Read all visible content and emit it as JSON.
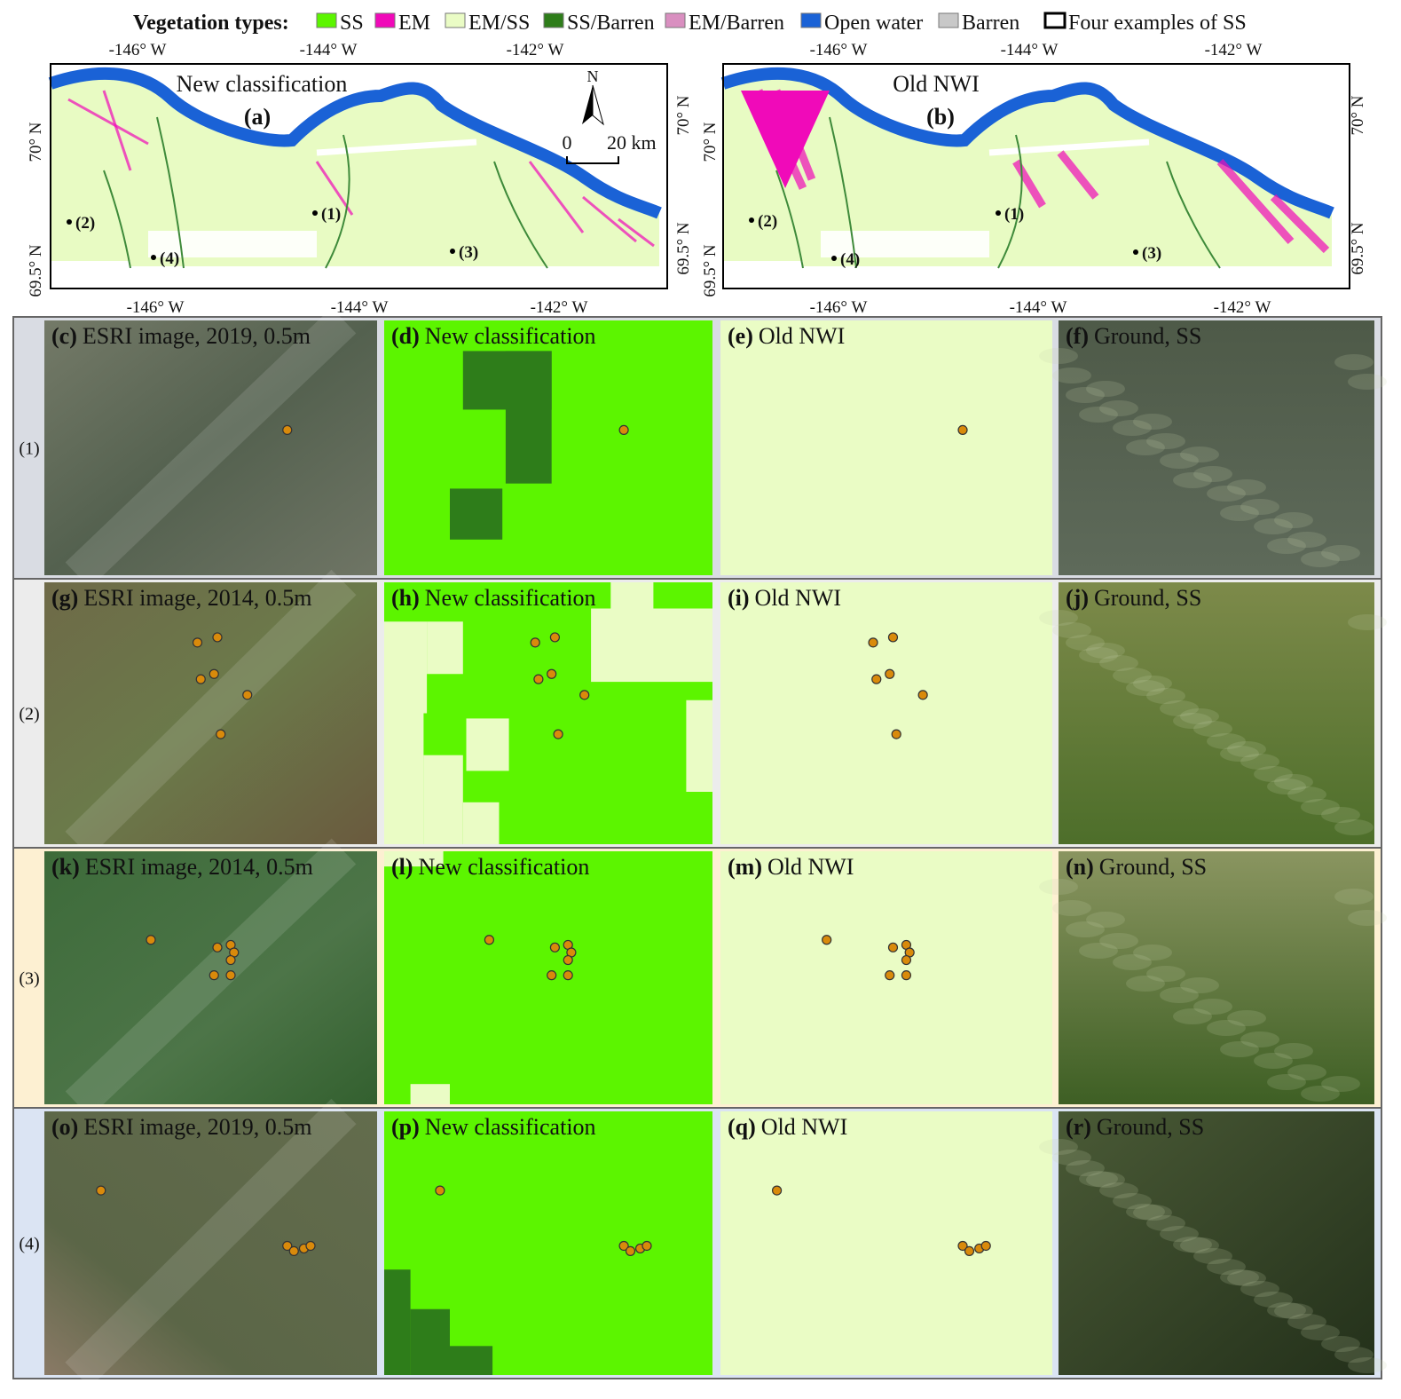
{
  "legend": {
    "title": "Vegetation types:",
    "items": [
      {
        "label": "SS",
        "color": "#5cf500"
      },
      {
        "label": "EM",
        "color": "#f00ab9"
      },
      {
        "label": "EM/SS",
        "color": "#eafcc5"
      },
      {
        "label": "SS/Barren",
        "color": "#2e7d1a"
      },
      {
        "label": "EM/Barren",
        "color": "#d98fc0"
      },
      {
        "label": "Open water",
        "color": "#1a62d6"
      },
      {
        "label": "Barren",
        "color": "#c8c8c8"
      },
      {
        "label": "Four examples of SS",
        "color": "#ffffff"
      }
    ]
  },
  "lon_ticks": [
    "-146° W",
    "-144° W",
    "-142° W"
  ],
  "lat_ticks": [
    "70° N",
    "69.5° N"
  ],
  "scale_bar": {
    "north": "N",
    "start": "0",
    "end": "20 km"
  },
  "maps": [
    {
      "title": "New classification",
      "letter": "(a)",
      "sites": [
        "(1)",
        "(2)",
        "(3)",
        "(4)"
      ]
    },
    {
      "title": "Old NWI",
      "letter": "(b)",
      "sites": [
        "(1)",
        "(2)",
        "(3)",
        "(4)"
      ]
    }
  ],
  "rows": [
    {
      "label": "(1)",
      "panels": [
        {
          "letter": "(c)",
          "caption": "ESRI image, 2019, 0.5m"
        },
        {
          "letter": "(d)",
          "caption": "New classification"
        },
        {
          "letter": "(e)",
          "caption": "Old NWI"
        },
        {
          "letter": "(f)",
          "caption": "Ground, SS"
        }
      ]
    },
    {
      "label": "(2)",
      "panels": [
        {
          "letter": "(g)",
          "caption": "ESRI image, 2014, 0.5m"
        },
        {
          "letter": "(h)",
          "caption": "New classification"
        },
        {
          "letter": "(i)",
          "caption": "Old NWI"
        },
        {
          "letter": "(j)",
          "caption": "Ground, SS"
        }
      ]
    },
    {
      "label": "(3)",
      "panels": [
        {
          "letter": "(k)",
          "caption": "ESRI image, 2014, 0.5m"
        },
        {
          "letter": "(l)",
          "caption": "New classification"
        },
        {
          "letter": "(m)",
          "caption": "Old NWI"
        },
        {
          "letter": "(n)",
          "caption": "Ground, SS"
        }
      ]
    },
    {
      "label": "(4)",
      "panels": [
        {
          "letter": "(o)",
          "caption": "ESRI image, 2019, 0.5m"
        },
        {
          "letter": "(p)",
          "caption": "New classification"
        },
        {
          "letter": "(q)",
          "caption": "Old NWI"
        },
        {
          "letter": "(r)",
          "caption": "Ground, SS"
        }
      ]
    }
  ]
}
